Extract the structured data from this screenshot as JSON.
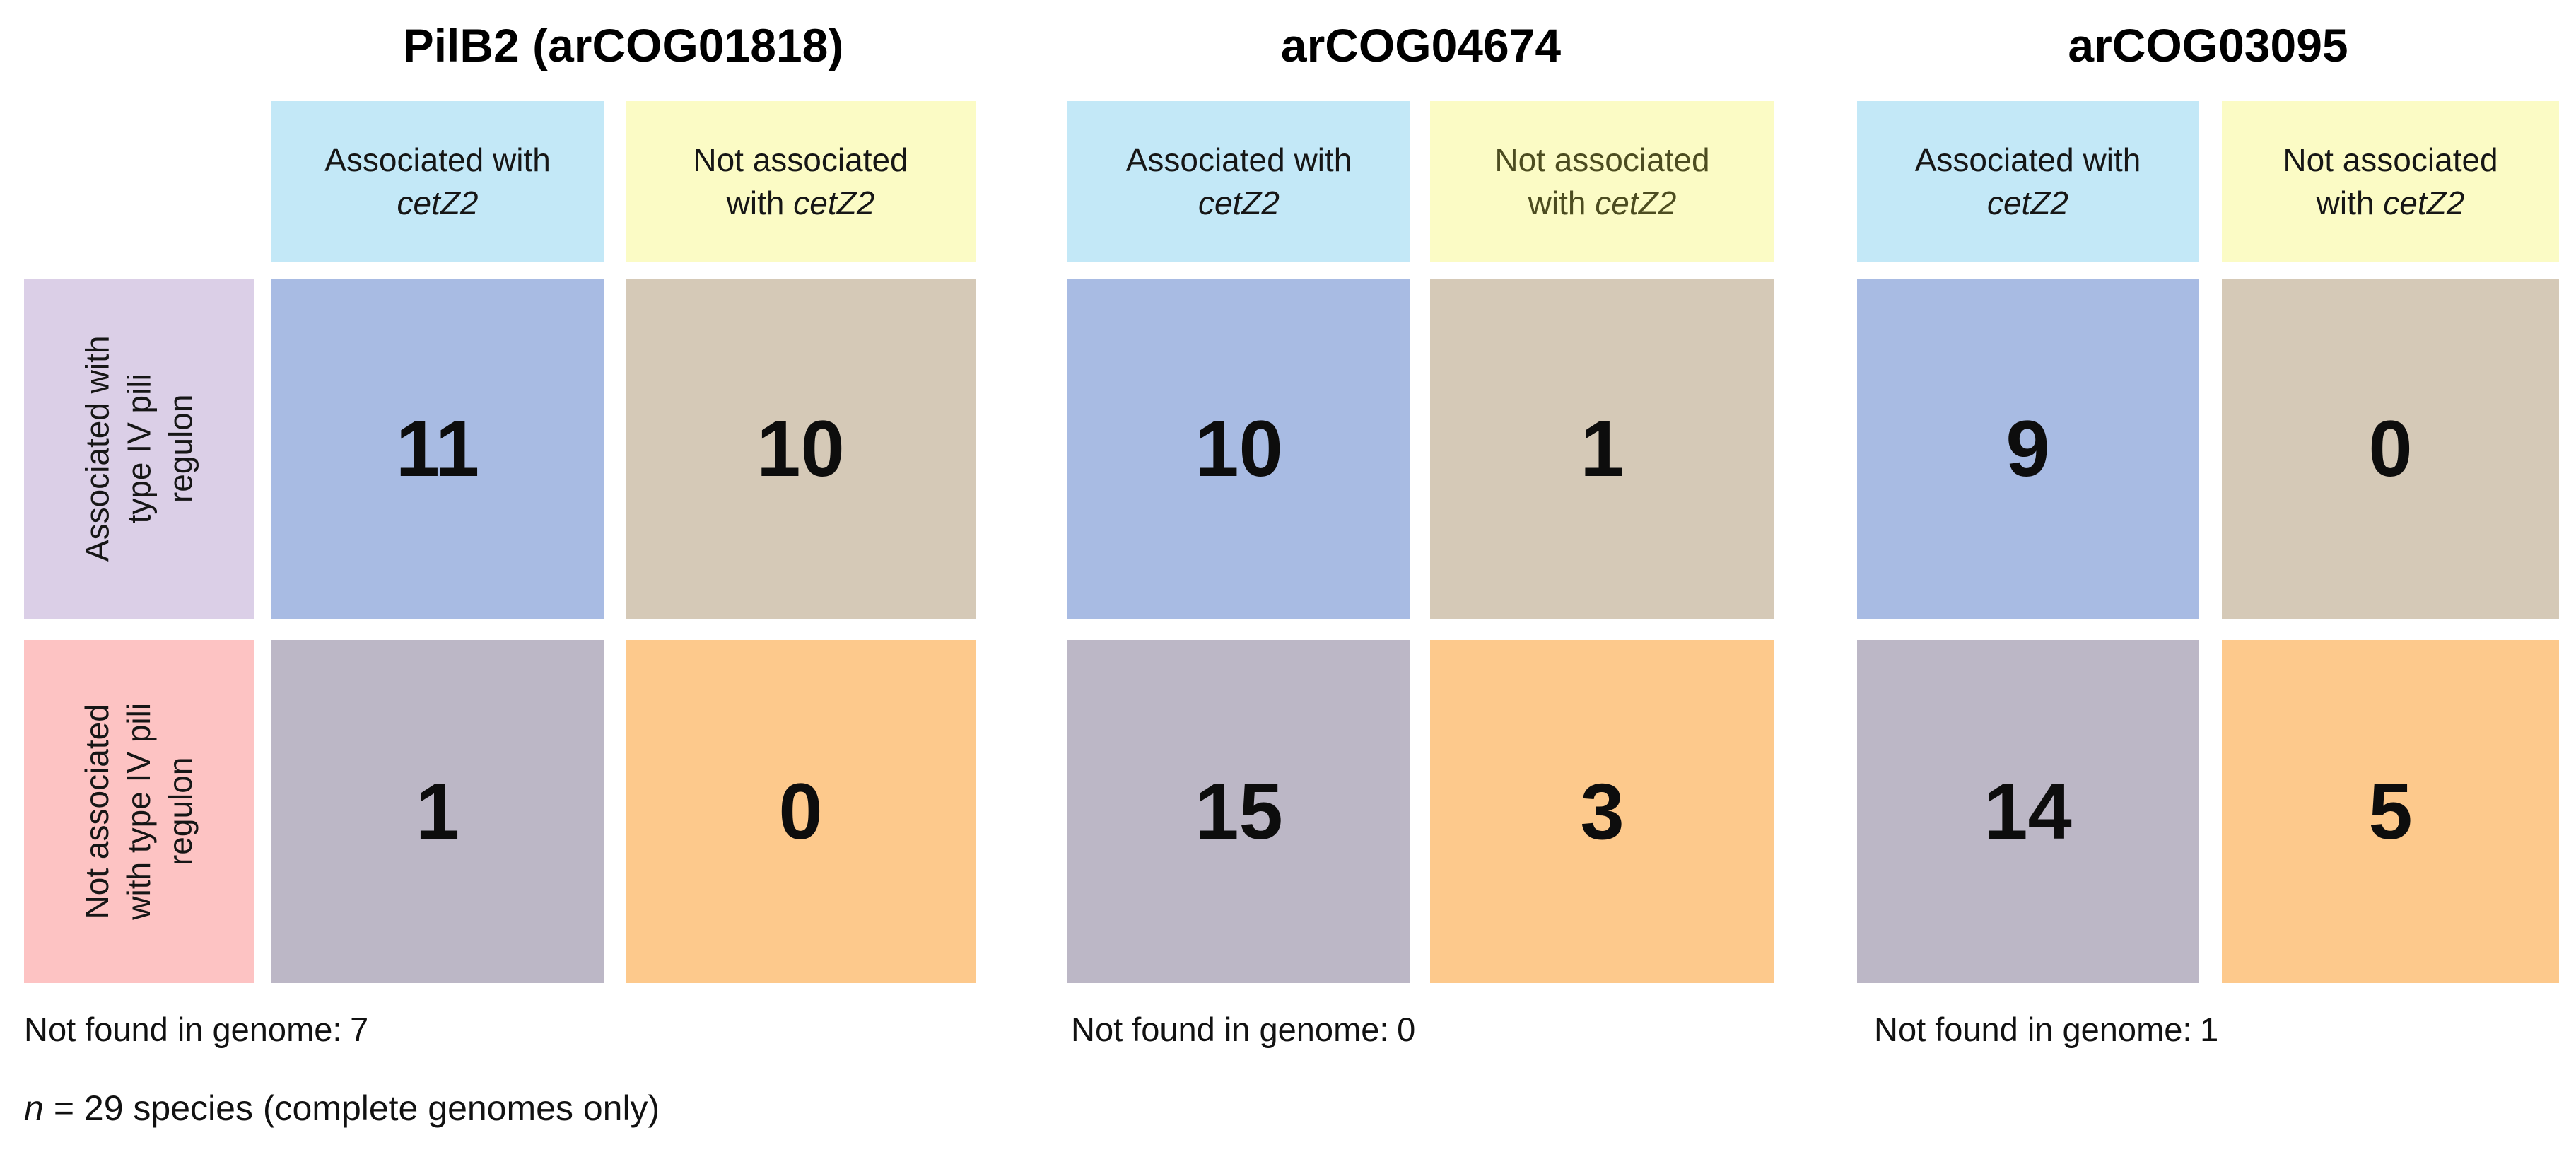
{
  "chart_data": [
    {
      "type": "table",
      "title": "PilB2 (arCOG01818)",
      "columns": [
        "Associated with cetZ2",
        "Not associated with cetZ2"
      ],
      "rows": [
        "Associated with type IV pili regulon",
        "Not associated with type IV pili regulon"
      ],
      "values": [
        [
          11,
          10
        ],
        [
          1,
          0
        ]
      ],
      "not_found_in_genome": 7
    },
    {
      "type": "table",
      "title": "arCOG04674",
      "columns": [
        "Associated with cetZ2",
        "Not associated with cetZ2"
      ],
      "rows": [
        "Associated with type IV pili regulon",
        "Not associated with type IV pili regulon"
      ],
      "values": [
        [
          10,
          1
        ],
        [
          15,
          3
        ]
      ],
      "not_found_in_genome": 0
    },
    {
      "type": "table",
      "title": "arCOG03095",
      "columns": [
        "Associated with cetZ2",
        "Not associated with cetZ2"
      ],
      "rows": [
        "Associated with type IV pili regulon",
        "Not associated with type IV pili regulon"
      ],
      "values": [
        [
          9,
          0
        ],
        [
          14,
          5
        ]
      ],
      "not_found_in_genome": 1
    }
  ],
  "ui": {
    "col_headers": {
      "assoc": {
        "line1": "Associated with",
        "gene": "cetZ2"
      },
      "not_assoc": {
        "line1": "Not associated",
        "line2_prefix": "with",
        "gene": "cetZ2"
      }
    },
    "row_headers": {
      "assoc": {
        "line1": "Associated with",
        "line2": "type IV pili",
        "line3": "regulon"
      },
      "not_assoc": {
        "line1": "Not associated",
        "line2": "with type IV pili",
        "line3": "regulon"
      }
    },
    "not_found_label": "Not found in genome:",
    "footnote": {
      "n_symbol": "n",
      "rest": "= 29 species (complete genomes only)"
    }
  },
  "colors": {
    "header_blue": "#c3e8f7",
    "header_yellow": "#fbfbc5",
    "header_yellow_text_t2": "#4c4c20",
    "row_purple": "#dbcfe7",
    "row_pink": "#fdc3c3",
    "cell_blue": "#a8bbe3",
    "cell_tan": "#d5c9b7",
    "cell_gray": "#bcb7c6",
    "cell_orange": "#fdc98c",
    "background": "#ffffff",
    "text": "#111111"
  }
}
